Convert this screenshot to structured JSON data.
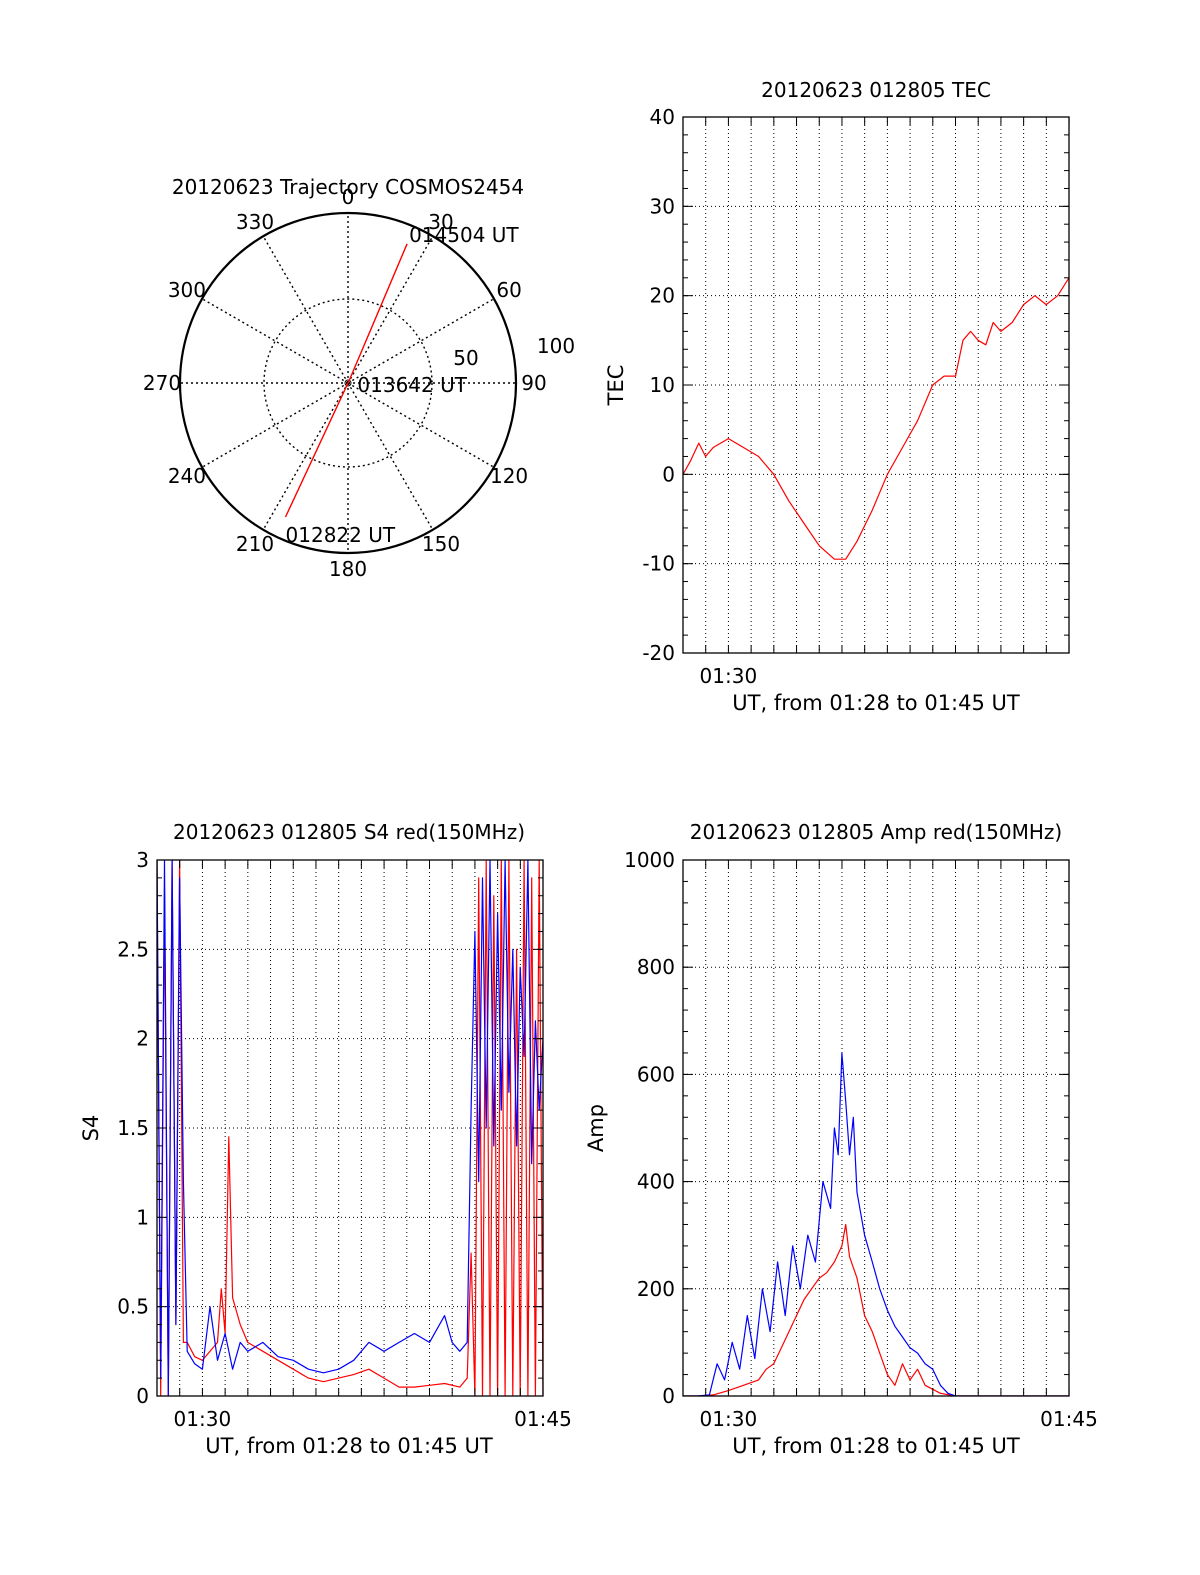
{
  "colors": {
    "red": "#ff0000",
    "blue": "#0000ff",
    "axis": "#000000",
    "grid": "#000000"
  },
  "chart_data": [
    {
      "id": "trajectory",
      "type": "polar",
      "title": "20120623 Trajectory COSMOS2454",
      "angle_labels": [
        "0",
        "30",
        "60",
        "90",
        "120",
        "150",
        "180",
        "210",
        "240",
        "270",
        "300",
        "330"
      ],
      "radial_labels": [
        "50",
        "100"
      ],
      "rlim": [
        0,
        100
      ],
      "series": [
        {
          "color": "#ff0000",
          "points": [
            {
              "az": 205,
              "zen": 88,
              "label": "012822 UT"
            },
            {
              "az": 25,
              "zen": 2,
              "label": "013642 UT"
            },
            {
              "az": 23,
              "zen": 90,
              "label": "014504 UT"
            }
          ]
        }
      ]
    },
    {
      "id": "tec",
      "type": "line",
      "title": "20120623 012805 TEC",
      "xlabel": "UT, from 01:28 to 01:45 UT",
      "ylabel": "TEC",
      "xlim": [
        1.4667,
        1.75
      ],
      "ylim": [
        -20,
        40
      ],
      "xtick_labels": [
        {
          "x": 1.5,
          "label": "01:30"
        }
      ],
      "ytick_labels": [
        "-20",
        "-10",
        "0",
        "10",
        "20",
        "30",
        "40"
      ],
      "series": [
        {
          "color": "#ff0000",
          "x": [
            1.4667,
            1.4722,
            1.4783,
            1.4833,
            1.4889,
            1.4944,
            1.5,
            1.5111,
            1.5222,
            1.5333,
            1.5444,
            1.5556,
            1.5667,
            1.5778,
            1.5861,
            1.5944,
            1.6056,
            1.6167,
            1.6278,
            1.6389,
            1.65,
            1.6583,
            1.6667,
            1.6722,
            1.6778,
            1.6833,
            1.6889,
            1.6944,
            1.7,
            1.7083,
            1.7167,
            1.725,
            1.7333,
            1.7417,
            1.75
          ],
          "y": [
            0,
            1.5,
            3.5,
            2,
            3,
            3.5,
            4,
            3,
            2,
            0,
            -3,
            -5.5,
            -8,
            -9.5,
            -9.5,
            -7.5,
            -4,
            0,
            3,
            6,
            10,
            11,
            11,
            15,
            16,
            15,
            14.5,
            17,
            16,
            17,
            19,
            20,
            19,
            20,
            22
          ]
        }
      ]
    },
    {
      "id": "s4",
      "type": "line",
      "title": "20120623 012805 S4 red(150MHz)",
      "xlabel": "UT, from 01:28 to 01:45 UT",
      "ylabel": "S4",
      "xlim": [
        1.4667,
        1.75
      ],
      "ylim": [
        0,
        3
      ],
      "xtick_labels": [
        {
          "x": 1.5,
          "label": "01:30"
        },
        {
          "x": 1.75,
          "label": "01:45"
        }
      ],
      "ytick_labels": [
        "0",
        "0.5",
        "1",
        "1.5",
        "2",
        "2.5",
        "3"
      ],
      "series": [
        {
          "color": "#ff0000",
          "x": [
            1.4667,
            1.4694,
            1.4722,
            1.475,
            1.4778,
            1.4806,
            1.4833,
            1.4861,
            1.4889,
            1.4944,
            1.5,
            1.5056,
            1.5111,
            1.5139,
            1.5167,
            1.5194,
            1.5222,
            1.5278,
            1.5333,
            1.5444,
            1.5556,
            1.5667,
            1.5778,
            1.5889,
            1.6,
            1.6111,
            1.6222,
            1.6333,
            1.6444,
            1.6556,
            1.6667,
            1.6778,
            1.6889,
            1.6944,
            1.6972,
            1.7,
            1.7028,
            1.7056,
            1.7083,
            1.7111,
            1.7139,
            1.7167,
            1.7194,
            1.7222,
            1.725,
            1.7278,
            1.7306,
            1.7333,
            1.7361,
            1.7389,
            1.7417,
            1.7444,
            1.7472,
            1.75
          ],
          "y": [
            3,
            0,
            2.8,
            0,
            3,
            0.4,
            3,
            0.3,
            0.3,
            0.22,
            0.2,
            0.25,
            0.3,
            0.6,
            0.35,
            1.45,
            0.55,
            0.4,
            0.3,
            0.25,
            0.2,
            0.15,
            0.1,
            0.08,
            0.1,
            0.12,
            0.15,
            0.1,
            0.05,
            0.05,
            0.06,
            0.07,
            0.05,
            0.1,
            0.8,
            0,
            2.9,
            0,
            3,
            0,
            2.8,
            0,
            3,
            0,
            3,
            0,
            2.5,
            0,
            3,
            0,
            2.9,
            0,
            3,
            0
          ]
        },
        {
          "color": "#0000ff",
          "x": [
            1.4667,
            1.4694,
            1.4722,
            1.475,
            1.4778,
            1.4806,
            1.4833,
            1.4861,
            1.4889,
            1.4944,
            1.5,
            1.5056,
            1.5111,
            1.5167,
            1.5222,
            1.5278,
            1.5333,
            1.5444,
            1.5556,
            1.5667,
            1.5778,
            1.5889,
            1.6,
            1.6111,
            1.6222,
            1.6333,
            1.6444,
            1.6556,
            1.6667,
            1.6778,
            1.6833,
            1.6889,
            1.6944,
            1.6972,
            1.7,
            1.7028,
            1.7056,
            1.7083,
            1.7111,
            1.7139,
            1.7167,
            1.7194,
            1.7222,
            1.725,
            1.7278,
            1.7306,
            1.7333,
            1.7361,
            1.7389,
            1.7417,
            1.7444,
            1.7472,
            1.75
          ],
          "y": [
            3,
            0.1,
            3,
            0,
            3,
            0.4,
            2.9,
            1.2,
            0.25,
            0.18,
            0.15,
            0.5,
            0.2,
            0.35,
            0.15,
            0.3,
            0.25,
            0.3,
            0.22,
            0.2,
            0.15,
            0.13,
            0.15,
            0.2,
            0.3,
            0.25,
            0.3,
            0.35,
            0.3,
            0.45,
            0.3,
            0.25,
            0.3,
            1.6,
            2.6,
            1.2,
            2.9,
            1.5,
            3,
            1.4,
            2.7,
            1.6,
            3,
            1.7,
            2.5,
            1.4,
            2.4,
            1.9,
            3,
            1.3,
            2.1,
            1.6,
            2
          ]
        }
      ]
    },
    {
      "id": "amp",
      "type": "line",
      "title": "20120623 012805 Amp red(150MHz)",
      "xlabel": "UT, from 01:28 to 01:45 UT",
      "ylabel": "Amp",
      "xlim": [
        1.4667,
        1.75
      ],
      "ylim": [
        0,
        1000
      ],
      "xtick_labels": [
        {
          "x": 1.5,
          "label": "01:30"
        },
        {
          "x": 1.75,
          "label": "01:45"
        }
      ],
      "ytick_labels": [
        "0",
        "200",
        "400",
        "600",
        "800",
        "1000"
      ],
      "series": [
        {
          "color": "#ff0000",
          "x": [
            1.4667,
            1.4778,
            1.4889,
            1.5,
            1.5111,
            1.5222,
            1.5278,
            1.5333,
            1.5389,
            1.5444,
            1.55,
            1.5556,
            1.5611,
            1.5667,
            1.5722,
            1.5778,
            1.5833,
            1.5861,
            1.5889,
            1.5944,
            1.6,
            1.6056,
            1.6111,
            1.6167,
            1.6222,
            1.6278,
            1.6333,
            1.6389,
            1.6444,
            1.6556,
            1.6667,
            1.6778,
            1.6889,
            1.75
          ],
          "y": [
            0,
            0,
            2,
            10,
            20,
            30,
            50,
            60,
            90,
            120,
            150,
            180,
            200,
            220,
            230,
            250,
            280,
            320,
            260,
            220,
            150,
            120,
            80,
            40,
            20,
            60,
            30,
            50,
            20,
            5,
            0,
            0,
            0,
            0
          ]
        },
        {
          "color": "#0000ff",
          "x": [
            1.4667,
            1.4778,
            1.4861,
            1.4917,
            1.4972,
            1.5028,
            1.5083,
            1.5139,
            1.5194,
            1.525,
            1.5306,
            1.5361,
            1.5417,
            1.5472,
            1.5528,
            1.5583,
            1.5639,
            1.5694,
            1.575,
            1.5778,
            1.5806,
            1.5833,
            1.5861,
            1.5889,
            1.5917,
            1.5944,
            1.6,
            1.6056,
            1.6111,
            1.6167,
            1.6222,
            1.6278,
            1.6333,
            1.6389,
            1.6444,
            1.65,
            1.6556,
            1.6611,
            1.6667,
            1.6778,
            1.75
          ],
          "y": [
            0,
            0,
            2,
            60,
            30,
            100,
            50,
            150,
            70,
            200,
            120,
            250,
            150,
            280,
            200,
            300,
            250,
            400,
            350,
            500,
            450,
            640,
            550,
            450,
            520,
            380,
            300,
            250,
            200,
            160,
            130,
            110,
            90,
            80,
            60,
            50,
            20,
            5,
            0,
            0,
            0
          ]
        }
      ]
    }
  ]
}
